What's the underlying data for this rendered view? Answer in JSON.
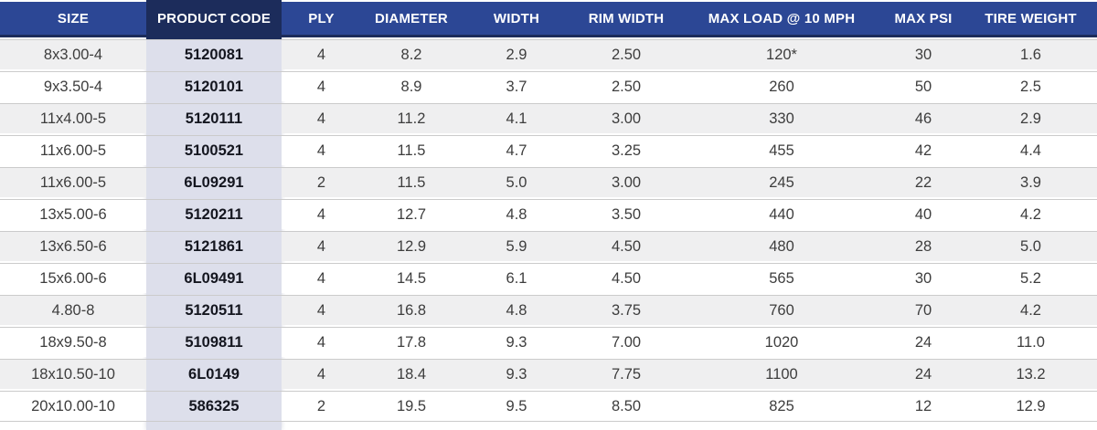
{
  "colors": {
    "header_bg": "#2c4795",
    "header_code_bg": "#1c2c5b",
    "code_column_bg": "#dddfeb",
    "row_alt_bg": "#efeff0",
    "row_bg": "#ffffff",
    "row_border": "#cbcbcb",
    "body_text": "#3d3d3d",
    "code_text": "#14161f",
    "header_text": "#ffffff"
  },
  "table": {
    "columns": [
      {
        "key": "size",
        "label": "SIZE"
      },
      {
        "key": "code",
        "label": "PRODUCT CODE"
      },
      {
        "key": "ply",
        "label": "PLY"
      },
      {
        "key": "diameter",
        "label": "DIAMETER"
      },
      {
        "key": "width",
        "label": "WIDTH"
      },
      {
        "key": "rim_width",
        "label": "RIM WIDTH"
      },
      {
        "key": "max_load",
        "label": "MAX LOAD @ 10 MPH"
      },
      {
        "key": "max_psi",
        "label": "MAX PSI"
      },
      {
        "key": "tire_weight",
        "label": "TIRE WEIGHT"
      }
    ],
    "rows": [
      {
        "size": "8x3.00-4",
        "code": "5120081",
        "ply": "4",
        "diameter": "8.2",
        "width": "2.9",
        "rim_width": "2.50",
        "max_load": "120*",
        "max_psi": "30",
        "tire_weight": "1.6"
      },
      {
        "size": "9x3.50-4",
        "code": "5120101",
        "ply": "4",
        "diameter": "8.9",
        "width": "3.7",
        "rim_width": "2.50",
        "max_load": "260",
        "max_psi": "50",
        "tire_weight": "2.5"
      },
      {
        "size": "11x4.00-5",
        "code": "5120111",
        "ply": "4",
        "diameter": "11.2",
        "width": "4.1",
        "rim_width": "3.00",
        "max_load": "330",
        "max_psi": "46",
        "tire_weight": "2.9"
      },
      {
        "size": "11x6.00-5",
        "code": "5100521",
        "ply": "4",
        "diameter": "11.5",
        "width": "4.7",
        "rim_width": "3.25",
        "max_load": "455",
        "max_psi": "42",
        "tire_weight": "4.4"
      },
      {
        "size": "11x6.00-5",
        "code": "6L09291",
        "ply": "2",
        "diameter": "11.5",
        "width": "5.0",
        "rim_width": "3.00",
        "max_load": "245",
        "max_psi": "22",
        "tire_weight": "3.9"
      },
      {
        "size": "13x5.00-6",
        "code": "5120211",
        "ply": "4",
        "diameter": "12.7",
        "width": "4.8",
        "rim_width": "3.50",
        "max_load": "440",
        "max_psi": "40",
        "tire_weight": "4.2"
      },
      {
        "size": "13x6.50-6",
        "code": "5121861",
        "ply": "4",
        "diameter": "12.9",
        "width": "5.9",
        "rim_width": "4.50",
        "max_load": "480",
        "max_psi": "28",
        "tire_weight": "5.0"
      },
      {
        "size": "15x6.00-6",
        "code": "6L09491",
        "ply": "4",
        "diameter": "14.5",
        "width": "6.1",
        "rim_width": "4.50",
        "max_load": "565",
        "max_psi": "30",
        "tire_weight": "5.2"
      },
      {
        "size": "4.80-8",
        "code": "5120511",
        "ply": "4",
        "diameter": "16.8",
        "width": "4.8",
        "rim_width": "3.75",
        "max_load": "760",
        "max_psi": "70",
        "tire_weight": "4.2"
      },
      {
        "size": "18x9.50-8",
        "code": "5109811",
        "ply": "4",
        "diameter": "17.8",
        "width": "9.3",
        "rim_width": "7.00",
        "max_load": "1020",
        "max_psi": "24",
        "tire_weight": "11.0"
      },
      {
        "size": "18x10.50-10",
        "code": "6L0149",
        "ply": "4",
        "diameter": "18.4",
        "width": "9.3",
        "rim_width": "7.75",
        "max_load": "1100",
        "max_psi": "24",
        "tire_weight": "13.2"
      },
      {
        "size": "20x10.00-10",
        "code": "586325",
        "ply": "2",
        "diameter": "19.5",
        "width": "9.5",
        "rim_width": "8.50",
        "max_load": "825",
        "max_psi": "12",
        "tire_weight": "12.9"
      }
    ]
  }
}
